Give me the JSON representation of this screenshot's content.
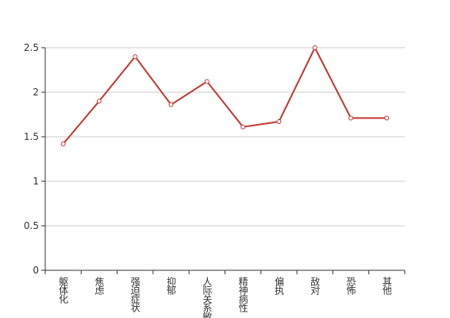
{
  "chart_data": {
    "type": "line",
    "categories": [
      "躯体化",
      "焦虑",
      "强迫症状",
      "抑郁",
      "人际关系敏感",
      "精神病性",
      "偏执",
      "敌对",
      "恐怖",
      "其他"
    ],
    "series": [
      {
        "color": "#c23531",
        "values": [
          1.42,
          1.9,
          2.4,
          1.86,
          2.12,
          1.61,
          1.67,
          2.5,
          1.71,
          1.71
        ]
      }
    ],
    "ylim": [
      0,
      2.5
    ],
    "yticks": [
      0,
      0.5,
      1,
      1.5,
      2,
      2.5
    ],
    "grid": true
  }
}
